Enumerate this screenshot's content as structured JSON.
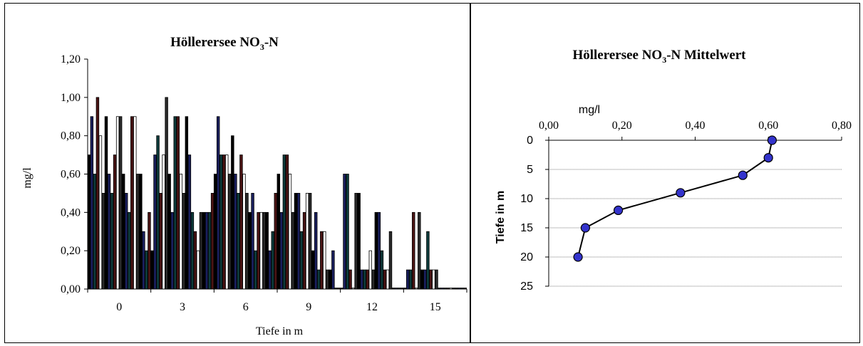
{
  "chart_data": [
    {
      "type": "bar",
      "title_main": "Höllerersee NO",
      "title_sub": "3",
      "title_tail": "-N",
      "xlabel": "Tiefe in m",
      "ylabel": "mg/l",
      "ylim": [
        0,
        1.2
      ],
      "yticks": [
        "0,00",
        "0,20",
        "0,40",
        "0,60",
        "0,80",
        "1,00",
        "1,20"
      ],
      "groups": [
        {
          "depth": "0",
          "values": [
            0.7,
            0.9,
            0.6,
            1.0,
            0.8,
            0.5,
            0.9,
            0.6,
            0.5,
            0.7,
            0.9,
            0.9,
            0.6,
            0.5,
            0.4,
            0.9,
            0.9,
            0.6,
            0.6,
            0.3,
            0.2,
            0.4
          ]
        },
        {
          "depth": "3",
          "values": [
            0.2,
            0.7,
            0.8,
            0.5,
            0.7,
            1.0,
            0.6,
            0.4,
            0.9,
            0.9,
            0.6,
            0.5,
            0.9,
            0.7,
            0.4,
            0.3,
            0.2,
            0.4,
            0.4,
            0.4,
            0.4,
            0.5
          ]
        },
        {
          "depth": "6",
          "values": [
            0.6,
            0.9,
            0.7,
            0.7,
            0.7,
            0.6,
            0.8,
            0.6,
            0.5,
            0.7,
            0.6,
            0.5,
            0.4,
            0.5,
            0.2,
            0.4,
            0.4,
            0.4,
            0.4,
            0.2,
            0.3,
            0.5
          ]
        },
        {
          "depth": "9",
          "values": [
            0.6,
            0.4,
            0.7,
            0.7,
            0.6,
            0.4,
            0.5,
            0.5,
            0.3,
            0.4,
            0.5,
            0.5,
            0.2,
            0.4,
            0.1,
            0.3,
            0.3,
            0.1,
            0.1,
            0.2,
            0.0,
            0.0
          ]
        },
        {
          "depth": "12",
          "values": [
            0.0,
            0.6,
            0.6,
            0.1,
            0.0,
            0.5,
            0.5,
            0.1,
            0.1,
            0.1,
            0.2,
            0.1,
            0.4,
            0.4,
            0.2,
            0.1,
            0.1,
            0.3,
            0.0,
            0.0,
            0.0,
            0.0
          ]
        },
        {
          "depth": "15",
          "values": [
            0.0,
            0.1,
            0.1,
            0.4,
            0.0,
            0.4,
            0.1,
            0.1,
            0.3,
            0.1,
            0.1,
            0.1,
            0.0,
            0.0,
            0.0,
            0.0,
            0.0,
            0.0,
            0.0,
            0.0,
            0.0,
            0.0
          ]
        }
      ],
      "series_colors": [
        "#000000",
        "#1a1f5e",
        "#0d3b3b",
        "#4b1414",
        "#ffffff",
        "#2a2a2a"
      ]
    },
    {
      "type": "line",
      "title_main": "Höllerersee NO",
      "title_sub": "3",
      "title_tail": "-N Mittelwert",
      "xlabel": "mg/l",
      "ylabel": "Tiefe in m",
      "xlim": [
        0,
        0.8
      ],
      "xticks": [
        "0,00",
        "0,20",
        "0,40",
        "0,60",
        "0,80"
      ],
      "ylim": [
        0,
        25
      ],
      "yticks": [
        "0",
        "5",
        "10",
        "15",
        "20",
        "25"
      ],
      "y_inverted": true,
      "marker_color": "#3333cc",
      "points": [
        {
          "x": 0.61,
          "y": 0
        },
        {
          "x": 0.6,
          "y": 3
        },
        {
          "x": 0.53,
          "y": 6
        },
        {
          "x": 0.36,
          "y": 9
        },
        {
          "x": 0.19,
          "y": 12
        },
        {
          "x": 0.1,
          "y": 15
        },
        {
          "x": 0.08,
          "y": 20
        }
      ]
    }
  ]
}
